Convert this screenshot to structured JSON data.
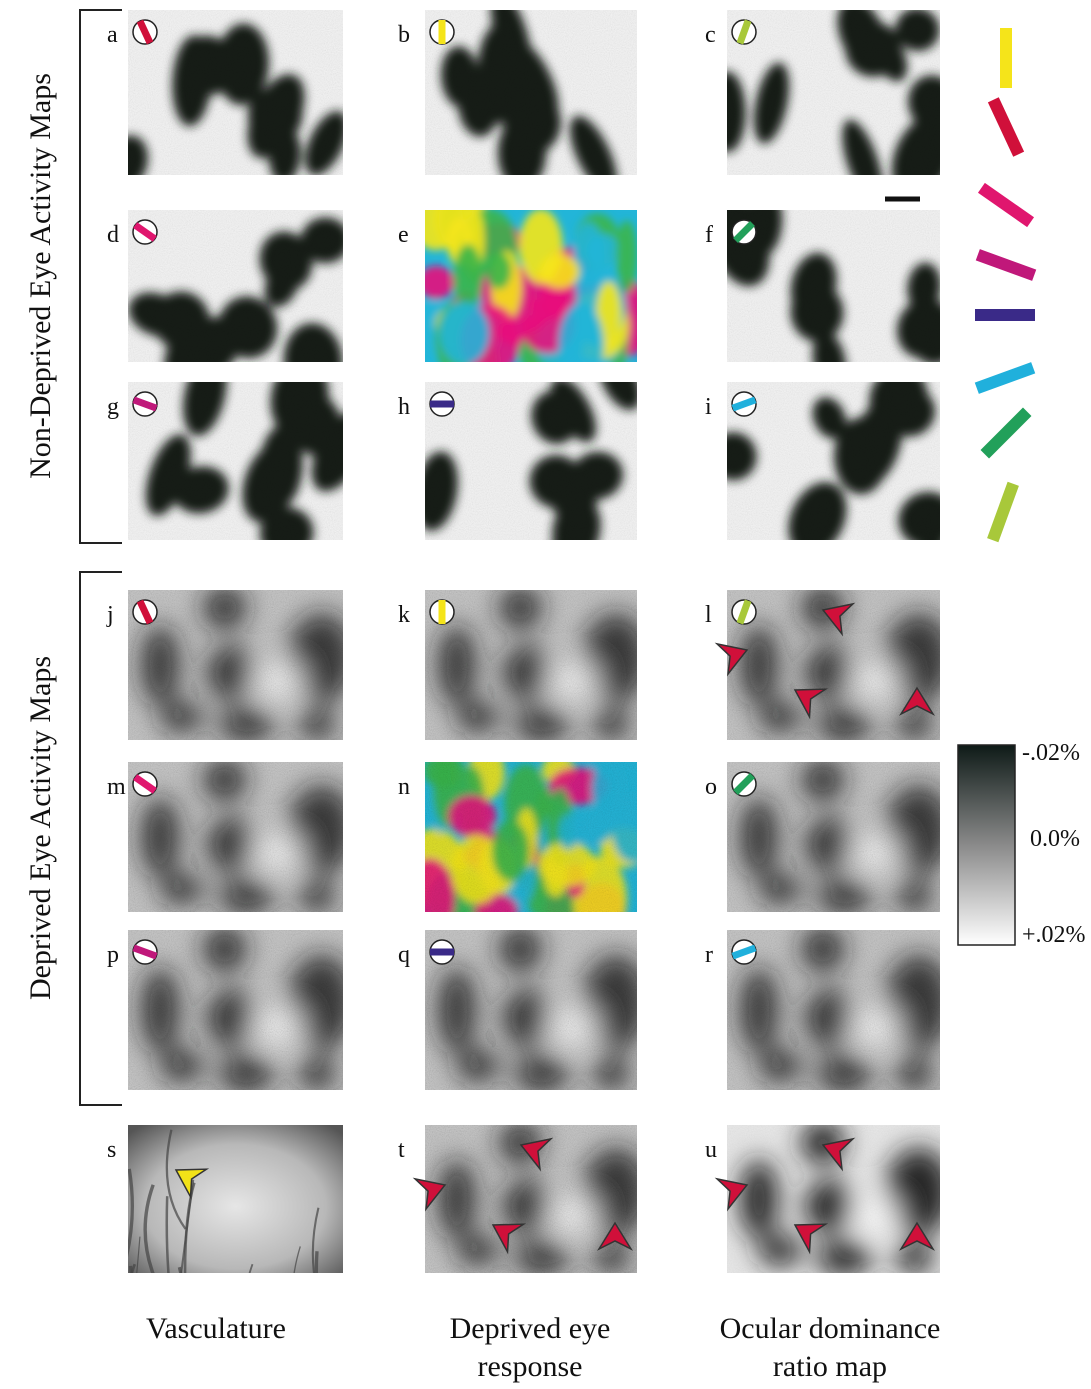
{
  "section_labels": [
    "Non-Deprived Eye Activity Maps",
    "Deprived Eye Activity Maps"
  ],
  "panel_labels": [
    "a",
    "b",
    "c",
    "d",
    "e",
    "f",
    "g",
    "h",
    "i",
    "j",
    "k",
    "l",
    "m",
    "n",
    "o",
    "p",
    "q",
    "r",
    "s",
    "t",
    "u"
  ],
  "colorbar_labels": [
    "-.02%",
    "0.0%",
    "+.02%"
  ],
  "column_labels": [
    [
      "Vasculature"
    ],
    [
      "Deprived eye",
      "response"
    ],
    [
      "Ocular dominance",
      "ratio map"
    ]
  ]
}
